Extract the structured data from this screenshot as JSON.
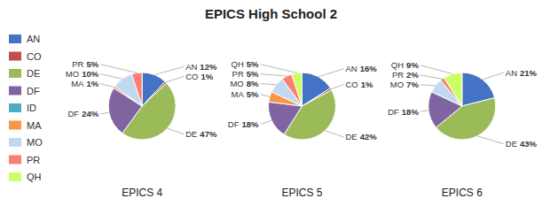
{
  "chart_data": {
    "type": "pie",
    "title": "EPICS High School 2",
    "categories": [
      "AN",
      "CO",
      "DE",
      "DF",
      "ID",
      "MA",
      "MO",
      "PR",
      "QH"
    ],
    "colors": [
      "#4472C4",
      "#C0504D",
      "#9BBB59",
      "#8064A2",
      "#4BACC6",
      "#F79646",
      "#C0D9F0",
      "#FA8072",
      "#CCFF66"
    ],
    "series": [
      {
        "name": "EPICS 4",
        "values": [
          12,
          1,
          47,
          24,
          0,
          1,
          10,
          5,
          0
        ],
        "value_labels": [
          "12%",
          "1%",
          "47%",
          "24%",
          null,
          "1%",
          "10%",
          "5%",
          null
        ]
      },
      {
        "name": "EPICS 5",
        "values": [
          16,
          1,
          42,
          18,
          0,
          5,
          8,
          5,
          5
        ],
        "value_labels": [
          "16%",
          "1%",
          "42%",
          "18%",
          null,
          "5%",
          "8%",
          "5%",
          "5%"
        ]
      },
      {
        "name": "EPICS 6",
        "values": [
          21,
          0,
          43,
          18,
          0,
          0,
          7,
          2,
          9
        ],
        "value_labels": [
          "21%",
          null,
          "43%",
          "18%",
          null,
          null,
          "7%",
          "2%",
          "9%"
        ]
      }
    ],
    "legend": "left",
    "data_labels": true
  }
}
